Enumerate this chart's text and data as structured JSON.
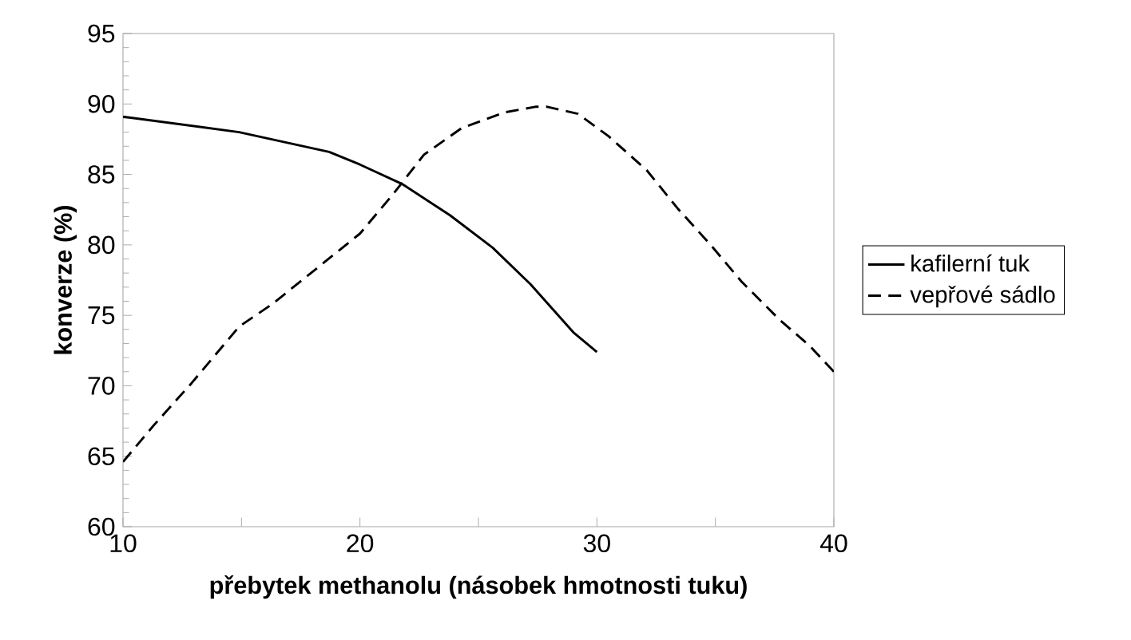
{
  "chart_data": {
    "type": "line",
    "xlabel": "přebytek methanolu (násobek hmotnosti  tuku)",
    "ylabel": "konverze (%)",
    "legend": "right",
    "xlim": [
      10,
      40
    ],
    "ylim": [
      60,
      95
    ],
    "xticks": [
      10,
      {
        "value": 15,
        "label": null
      },
      20,
      {
        "value": 25,
        "label": null
      },
      30,
      {
        "value": 35,
        "label": null
      },
      40
    ],
    "yticks": [
      60,
      65,
      70,
      75,
      80,
      85,
      90,
      95
    ],
    "series": [
      {
        "name": "kafilerní tuk",
        "color": "#000000",
        "line_style": "solid",
        "x": [
          10,
          14.9,
          18.7,
          20,
          21.8,
          23.8,
          25.6,
          27.2,
          29,
          30
        ],
        "values": [
          89.1,
          88.0,
          86.6,
          85.7,
          84.3,
          82.1,
          79.8,
          77.2,
          73.8,
          72.4
        ]
      },
      {
        "name": "vepřové sádlo",
        "color": "#000000",
        "line_style": "dashed",
        "x": [
          10,
          11.3,
          12.9,
          14.2,
          14.9,
          16.3,
          18.3,
          20,
          21.4,
          22.7,
          24.3,
          26.1,
          27.4,
          27.9,
          29.2,
          30.5,
          32.1,
          33.4,
          34.8,
          36.1,
          37.7,
          39,
          40
        ],
        "values": [
          64.6,
          67.2,
          70.2,
          72.8,
          74.2,
          75.8,
          78.5,
          80.8,
          83.6,
          86.4,
          88.3,
          89.4,
          89.8,
          89.8,
          89.3,
          87.7,
          85.3,
          82.6,
          80.0,
          77.4,
          74.7,
          72.8,
          71.0
        ]
      }
    ]
  }
}
